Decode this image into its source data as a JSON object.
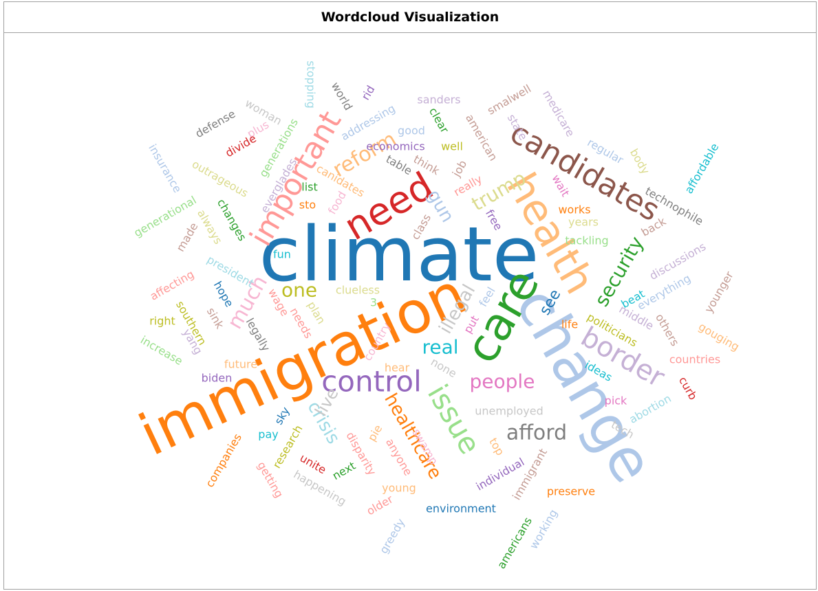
{
  "panel": {
    "title": "Wordcloud Visualization"
  },
  "words": [
    {
      "text": "climate",
      "color": "#1f77b4"
    },
    {
      "text": "immigration",
      "color": "#ff7f0e"
    },
    {
      "text": "change",
      "color": "#aec7e8"
    },
    {
      "text": "health",
      "color": "#ffbb78"
    },
    {
      "text": "care",
      "color": "#2ca02c"
    },
    {
      "text": "need",
      "color": "#d62728"
    },
    {
      "text": "important",
      "color": "#ff9896"
    },
    {
      "text": "candidates",
      "color": "#8c564b"
    },
    {
      "text": "control",
      "color": "#9467bd"
    },
    {
      "text": "border",
      "color": "#c5b0d5"
    },
    {
      "text": "issue",
      "color": "#98df8a"
    },
    {
      "text": "reform",
      "color": "#ffbb78"
    },
    {
      "text": "trump",
      "color": "#dbdb8d"
    },
    {
      "text": "security",
      "color": "#2ca02c"
    },
    {
      "text": "much",
      "color": "#f7b6d2"
    },
    {
      "text": "illegal",
      "color": "#c7c7c7"
    },
    {
      "text": "gun",
      "color": "#aec7e8"
    },
    {
      "text": "one",
      "color": "#bcbd22"
    },
    {
      "text": "real",
      "color": "#17becf"
    },
    {
      "text": "people",
      "color": "#e377c2"
    },
    {
      "text": "see",
      "color": "#1f77b4"
    },
    {
      "text": "afford",
      "color": "#7f7f7f"
    },
    {
      "text": "healthcare",
      "color": "#ff7f0e"
    },
    {
      "text": "crisis",
      "color": "#9edae5"
    },
    {
      "text": "live",
      "color": "#c7c7c7"
    },
    {
      "text": "stopping",
      "color": "#9edae5"
    },
    {
      "text": "world",
      "color": "#7f7f7f"
    },
    {
      "text": "rid",
      "color": "#9467bd"
    },
    {
      "text": "addressing",
      "color": "#aec7e8"
    },
    {
      "text": "sanders",
      "color": "#c5b0d5"
    },
    {
      "text": "smalwell",
      "color": "#c49c94"
    },
    {
      "text": "medicare",
      "color": "#c5b0d5"
    },
    {
      "text": "woman",
      "color": "#c7c7c7"
    },
    {
      "text": "defense",
      "color": "#7f7f7f"
    },
    {
      "text": "plus",
      "color": "#f7b6d2"
    },
    {
      "text": "generations",
      "color": "#98df8a"
    },
    {
      "text": "divide",
      "color": "#d62728"
    },
    {
      "text": "clear",
      "color": "#2ca02c"
    },
    {
      "text": "good",
      "color": "#aec7e8"
    },
    {
      "text": "american",
      "color": "#c49c94"
    },
    {
      "text": "state",
      "color": "#c5b0d5"
    },
    {
      "text": "economics",
      "color": "#9467bd"
    },
    {
      "text": "well",
      "color": "#bcbd22"
    },
    {
      "text": "regular",
      "color": "#aec7e8"
    },
    {
      "text": "body",
      "color": "#dbdb8d"
    },
    {
      "text": "affordable",
      "color": "#17becf"
    },
    {
      "text": "insurance",
      "color": "#aec7e8"
    },
    {
      "text": "outrageous",
      "color": "#dbdb8d"
    },
    {
      "text": "everglades",
      "color": "#c5b0d5"
    },
    {
      "text": "canidates",
      "color": "#ffbb78"
    },
    {
      "text": "table",
      "color": "#7f7f7f"
    },
    {
      "text": "think",
      "color": "#c49c94"
    },
    {
      "text": "job",
      "color": "#c49c94"
    },
    {
      "text": "really",
      "color": "#ff9896"
    },
    {
      "text": "wait",
      "color": "#e377c2"
    },
    {
      "text": "list",
      "color": "#2ca02c"
    },
    {
      "text": "sto",
      "color": "#ff7f0e"
    },
    {
      "text": "food",
      "color": "#f7b6d2"
    },
    {
      "text": "technophile",
      "color": "#7f7f7f"
    },
    {
      "text": "works",
      "color": "#ff7f0e"
    },
    {
      "text": "years",
      "color": "#dbdb8d"
    },
    {
      "text": "generational",
      "color": "#98df8a"
    },
    {
      "text": "changes",
      "color": "#2ca02c"
    },
    {
      "text": "always",
      "color": "#dbdb8d"
    },
    {
      "text": "made",
      "color": "#c49c94"
    },
    {
      "text": "class",
      "color": "#c49c94"
    },
    {
      "text": "free",
      "color": "#9467bd"
    },
    {
      "text": "back",
      "color": "#c49c94"
    },
    {
      "text": "tackling",
      "color": "#98df8a"
    },
    {
      "text": "discussions",
      "color": "#c5b0d5"
    },
    {
      "text": "fun",
      "color": "#17becf"
    },
    {
      "text": "president",
      "color": "#9edae5"
    },
    {
      "text": "affecting",
      "color": "#ff9896"
    },
    {
      "text": "clueless",
      "color": "#dbdb8d"
    },
    {
      "text": "3",
      "color": "#98df8a"
    },
    {
      "text": "hope",
      "color": "#1f77b4"
    },
    {
      "text": "wage",
      "color": "#ff9896"
    },
    {
      "text": "plan",
      "color": "#dbdb8d"
    },
    {
      "text": "beat",
      "color": "#17becf"
    },
    {
      "text": "everything",
      "color": "#aec7e8"
    },
    {
      "text": "younger",
      "color": "#c49c94"
    },
    {
      "text": "feel",
      "color": "#aec7e8"
    },
    {
      "text": "middle",
      "color": "#c5b0d5"
    },
    {
      "text": "right",
      "color": "#bcbd22"
    },
    {
      "text": "southern",
      "color": "#bcbd22"
    },
    {
      "text": "sink",
      "color": "#c49c94"
    },
    {
      "text": "needs",
      "color": "#ff9896"
    },
    {
      "text": "legally",
      "color": "#7f7f7f"
    },
    {
      "text": "put",
      "color": "#e377c2"
    },
    {
      "text": "life",
      "color": "#ff7f0e"
    },
    {
      "text": "politicians",
      "color": "#bcbd22"
    },
    {
      "text": "others",
      "color": "#c49c94"
    },
    {
      "text": "gouging",
      "color": "#ffbb78"
    },
    {
      "text": "yang",
      "color": "#c5b0d5"
    },
    {
      "text": "increase",
      "color": "#98df8a"
    },
    {
      "text": "country",
      "color": "#f7b6d2"
    },
    {
      "text": "future",
      "color": "#ffbb78"
    },
    {
      "text": "hear",
      "color": "#ffbb78"
    },
    {
      "text": "none",
      "color": "#c7c7c7"
    },
    {
      "text": "countries",
      "color": "#ff9896"
    },
    {
      "text": "ideas",
      "color": "#17becf"
    },
    {
      "text": "biden",
      "color": "#9467bd"
    },
    {
      "text": "curb",
      "color": "#d62728"
    },
    {
      "text": "pick",
      "color": "#e377c2"
    },
    {
      "text": "abortion",
      "color": "#9edae5"
    },
    {
      "text": "unemployed",
      "color": "#c7c7c7"
    },
    {
      "text": "sky",
      "color": "#1f77b4"
    },
    {
      "text": "tech",
      "color": "#c7c7c7"
    },
    {
      "text": "pay",
      "color": "#17becf"
    },
    {
      "text": "pie",
      "color": "#ffbb78"
    },
    {
      "text": "research",
      "color": "#bcbd22"
    },
    {
      "text": "disparity",
      "color": "#ff9896"
    },
    {
      "text": "swamp",
      "color": "#f7b6d2"
    },
    {
      "text": "anyone",
      "color": "#ff9896"
    },
    {
      "text": "top",
      "color": "#ffbb78"
    },
    {
      "text": "companies",
      "color": "#ff7f0e"
    },
    {
      "text": "immigrant",
      "color": "#c49c94"
    },
    {
      "text": "individual",
      "color": "#9467bd"
    },
    {
      "text": "unite",
      "color": "#d62728"
    },
    {
      "text": "next",
      "color": "#2ca02c"
    },
    {
      "text": "getting",
      "color": "#ff9896"
    },
    {
      "text": "happening",
      "color": "#c7c7c7"
    },
    {
      "text": "young",
      "color": "#ffbb78"
    },
    {
      "text": "preserve",
      "color": "#ff7f0e"
    },
    {
      "text": "older",
      "color": "#ff9896"
    },
    {
      "text": "environment",
      "color": "#1f77b4"
    },
    {
      "text": "greedy",
      "color": "#aec7e8"
    },
    {
      "text": "americans",
      "color": "#2ca02c"
    },
    {
      "text": "working",
      "color": "#aec7e8"
    }
  ]
}
